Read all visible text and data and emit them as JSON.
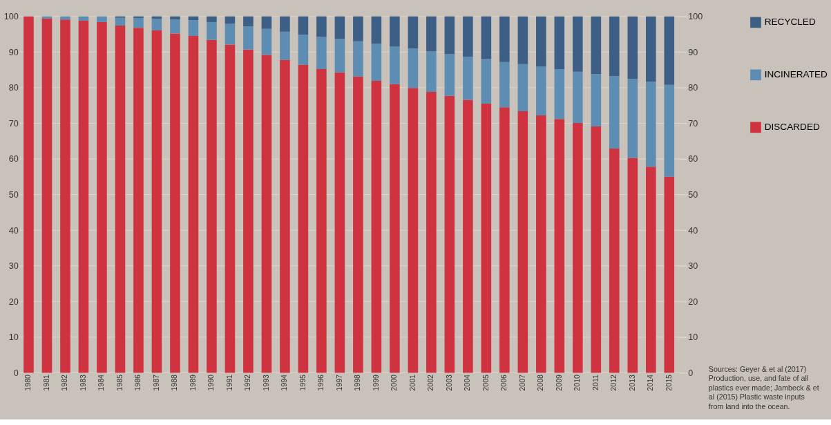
{
  "chart_data": {
    "type": "bar",
    "stacked": true,
    "categories": [
      "1980",
      "1981",
      "1982",
      "1983",
      "1984",
      "1985",
      "1986",
      "1987",
      "1988",
      "1989",
      "1990",
      "1991",
      "1992",
      "1993",
      "1994",
      "1995",
      "1996",
      "1997",
      "1998",
      "1999",
      "2000",
      "2001",
      "2002",
      "2003",
      "2004",
      "2005",
      "2006",
      "2007",
      "2008",
      "2009",
      "2010",
      "2011",
      "2012",
      "2013",
      "2014",
      "2015"
    ],
    "series": [
      {
        "name": "DISCARDED",
        "color": "#cf3340",
        "values": [
          100,
          99.4,
          99.1,
          98.8,
          98.4,
          97.4,
          96.8,
          96.1,
          95.2,
          94.5,
          93.4,
          92.1,
          90.7,
          89.2,
          87.8,
          86.4,
          85.2,
          84.3,
          83.1,
          81.9,
          81.0,
          79.9,
          78.8,
          77.7,
          76.6,
          75.5,
          74.5,
          73.4,
          72.2,
          71.2,
          70.1,
          69.1,
          62.9,
          60.3,
          57.8,
          55.0
        ]
      },
      {
        "name": "INCINERATED",
        "color": "#5e8db3",
        "values": [
          0,
          0.6,
          0.9,
          1.2,
          1.6,
          2.2,
          2.7,
          3.2,
          3.9,
          4.4,
          5.0,
          5.8,
          6.5,
          7.3,
          7.9,
          8.5,
          9.1,
          9.4,
          9.9,
          10.4,
          10.5,
          11.1,
          11.4,
          11.7,
          12.1,
          12.6,
          12.7,
          13.2,
          13.7,
          14.0,
          14.4,
          14.7,
          20.3,
          22.2,
          23.9,
          25.8
        ]
      },
      {
        "name": "RECYCLED",
        "color": "#3d5f86",
        "values": [
          0,
          0,
          0,
          0,
          0,
          0.4,
          0.5,
          0.7,
          0.9,
          1.1,
          1.6,
          2.1,
          2.8,
          3.5,
          4.3,
          5.1,
          5.7,
          6.3,
          7.0,
          7.7,
          8.5,
          9.0,
          9.8,
          10.6,
          11.3,
          11.9,
          12.8,
          13.4,
          14.1,
          14.8,
          15.5,
          16.2,
          16.8,
          17.5,
          18.3,
          19.2
        ]
      }
    ],
    "ylim": [
      0,
      100
    ],
    "yticks": [
      0,
      10,
      20,
      30,
      40,
      50,
      60,
      70,
      80,
      90,
      100
    ],
    "y2lim": [
      0,
      100
    ],
    "y2ticks": [
      0,
      10,
      20,
      30,
      40,
      50,
      60,
      70,
      80,
      90,
      100
    ],
    "grid": "y",
    "legend": "right",
    "annotations": [
      "Sources: Geyer & et al (2017) Production, use, and fate of all plastics ever made; Jambeck & et al (2015) Plastic waste inputs from land into the ocean."
    ]
  }
}
